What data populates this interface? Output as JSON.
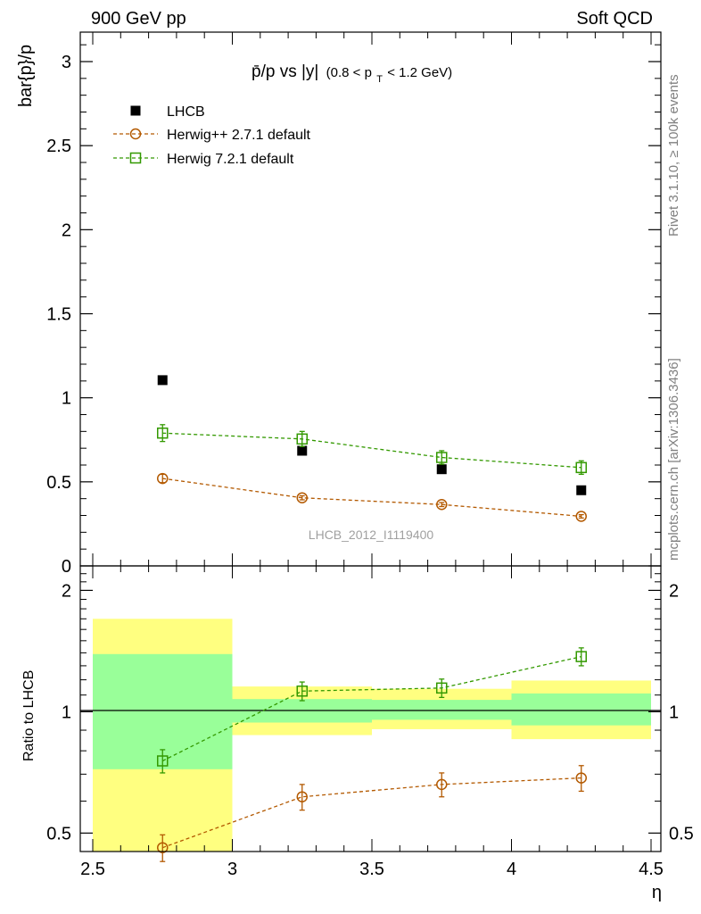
{
  "header": {
    "left": "900 GeV pp",
    "right": "Soft QCD"
  },
  "side": {
    "rivet": "Rivet 3.1.10, ≥ 100k events",
    "mcplots": "mcplots.cern.ch [arXiv:1306.3436]"
  },
  "watermark": "LHCB_2012_I1119400",
  "colors": {
    "lhcb": "#000000",
    "herwigpp": "#b35900",
    "herwig7": "#339900",
    "band_yellow": "#ffff80",
    "band_green": "#99ff99"
  },
  "chart_data": [
    {
      "type": "scatter",
      "panel": "main",
      "title": {
        "main": "p̄/p vs |y|",
        "sub": "(0.8 < p",
        "sub_idx": "T",
        "sub_end": " < 1.2 GeV)"
      },
      "xlabel": "η",
      "ylabel": "bar{p}/p",
      "xlim": [
        2.5,
        4.5
      ],
      "ylim": [
        0,
        3.2
      ],
      "y_ticks": [
        0,
        0.5,
        1,
        1.5,
        2,
        2.5,
        3
      ],
      "y_tick_labels": [
        "0",
        "0.5",
        "1",
        "1.5",
        "2",
        "2.5",
        "3"
      ],
      "x": [
        2.75,
        3.25,
        3.75,
        4.25
      ],
      "series": [
        {
          "name": "LHCB",
          "marker": "filled-square",
          "values": [
            1.105,
            0.685,
            0.575,
            0.45
          ],
          "errors": [
            0,
            0,
            0,
            0
          ]
        },
        {
          "name": "Herwig++ 2.7.1 default",
          "marker": "open-circle",
          "values": [
            0.52,
            0.405,
            0.365,
            0.295
          ],
          "errors": [
            0.025,
            0.012,
            0.012,
            0.01
          ]
        },
        {
          "name": "Herwig 7.2.1 default",
          "marker": "open-square",
          "values": [
            0.79,
            0.755,
            0.645,
            0.585
          ],
          "errors": [
            0.05,
            0.045,
            0.04,
            0.04
          ]
        }
      ],
      "legend": [
        {
          "label": "LHCB",
          "marker": "filled-square"
        },
        {
          "label": "Herwig++ 2.7.1 default",
          "marker": "open-circle"
        },
        {
          "label": "Herwig 7.2.1 default",
          "marker": "open-square"
        }
      ]
    },
    {
      "type": "scatter",
      "panel": "ratio",
      "xlabel": "η",
      "ylabel": "Ratio to LHCB",
      "xlim": [
        2.5,
        4.5
      ],
      "ylim": [
        0.45,
        2.3
      ],
      "y_scale": "log",
      "y_ticks": [
        0.5,
        1,
        2
      ],
      "y_tick_labels": [
        "0.5",
        "1",
        "2"
      ],
      "x_ticks": [
        2.5,
        3,
        3.5,
        4,
        4.5
      ],
      "x_tick_labels": [
        "2.5",
        "3",
        "3.5",
        "4",
        "4.5"
      ],
      "bands": [
        {
          "x0": 2.5,
          "x1": 3.0,
          "yellow": [
            0.45,
            1.7
          ],
          "green": [
            0.72,
            1.39
          ]
        },
        {
          "x0": 3.0,
          "x1": 3.5,
          "yellow": [
            0.875,
            1.155
          ],
          "green": [
            0.94,
            1.075
          ]
        },
        {
          "x0": 3.5,
          "x1": 4.0,
          "yellow": [
            0.905,
            1.14
          ],
          "green": [
            0.955,
            1.07
          ]
        },
        {
          "x0": 4.0,
          "x1": 4.5,
          "yellow": [
            0.855,
            1.195
          ],
          "green": [
            0.925,
            1.11
          ]
        }
      ],
      "x": [
        2.75,
        3.25,
        3.75,
        4.25
      ],
      "series": [
        {
          "name": "Herwig++ 2.7.1 default",
          "values": [
            0.46,
            0.615,
            0.66,
            0.685
          ],
          "errors": [
            0.035,
            0.045,
            0.045,
            0.05
          ]
        },
        {
          "name": "Herwig 7.2.1 default",
          "values": [
            0.755,
            1.125,
            1.145,
            1.37
          ],
          "errors": [
            0.05,
            0.06,
            0.06,
            0.07
          ]
        }
      ]
    }
  ]
}
